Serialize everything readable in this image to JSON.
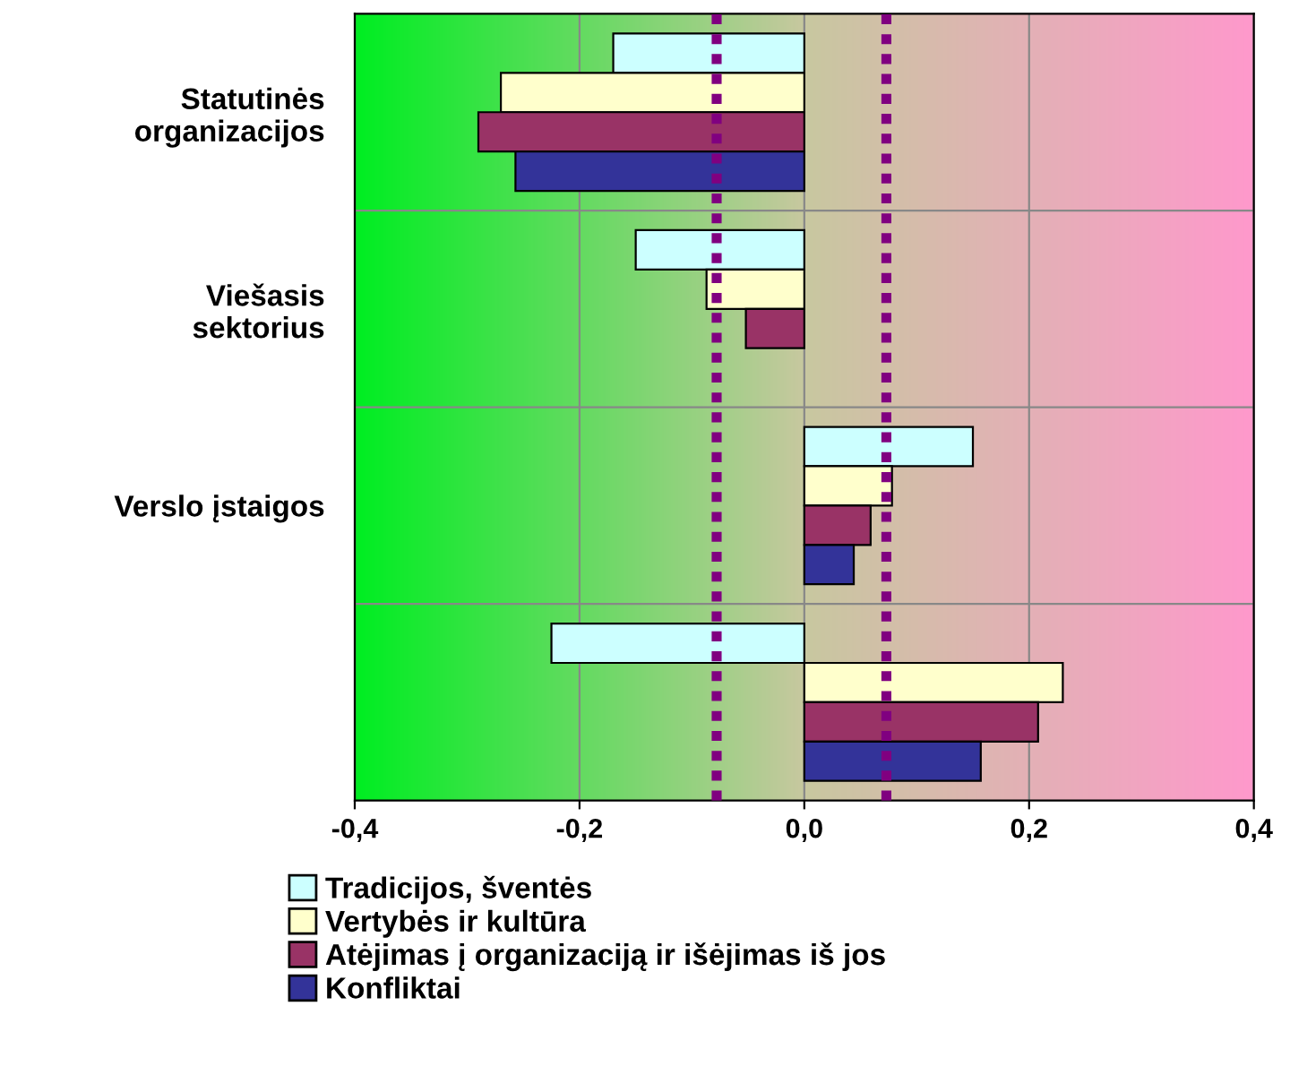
{
  "chart_data": {
    "type": "bar",
    "orientation": "horizontal",
    "categories": [
      "Statutinės\norganizacijos",
      "Viešasis\nsektorius",
      "Verslo įstaigos",
      null
    ],
    "series": [
      {
        "name": "Tradicijos, šventės",
        "color": "#ccffff",
        "values": [
          -0.17,
          -0.15,
          0.15,
          -0.225
        ]
      },
      {
        "name": "Vertybės ir kultūra",
        "color": "#ffffcc",
        "values": [
          -0.27,
          -0.087,
          0.078,
          0.23
        ]
      },
      {
        "name": "Atėjimas į organizaciją ir išėjimas iš jos",
        "color": "#993366",
        "values": [
          -0.29,
          -0.052,
          0.059,
          0.208
        ]
      },
      {
        "name": "Konfliktai",
        "color": "#333399",
        "values": [
          -0.257,
          null,
          0.044,
          0.157
        ]
      }
    ],
    "xlim": [
      -0.4,
      0.4
    ],
    "xticks": [
      {
        "value": -0.4,
        "label": "-0,4"
      },
      {
        "value": -0.2,
        "label": "-0,2"
      },
      {
        "value": 0,
        "label": "0,0"
      },
      {
        "value": 0.2,
        "label": "0,2"
      },
      {
        "value": 0.4,
        "label": "0,4"
      }
    ],
    "ref_lines": [
      {
        "axis": "x",
        "value": -0.078,
        "color": "#800080",
        "line_style": "dotted"
      },
      {
        "axis": "x",
        "value": 0.073,
        "color": "#800080",
        "line_style": "dotted"
      }
    ],
    "grid": true,
    "legend": "bottom"
  }
}
